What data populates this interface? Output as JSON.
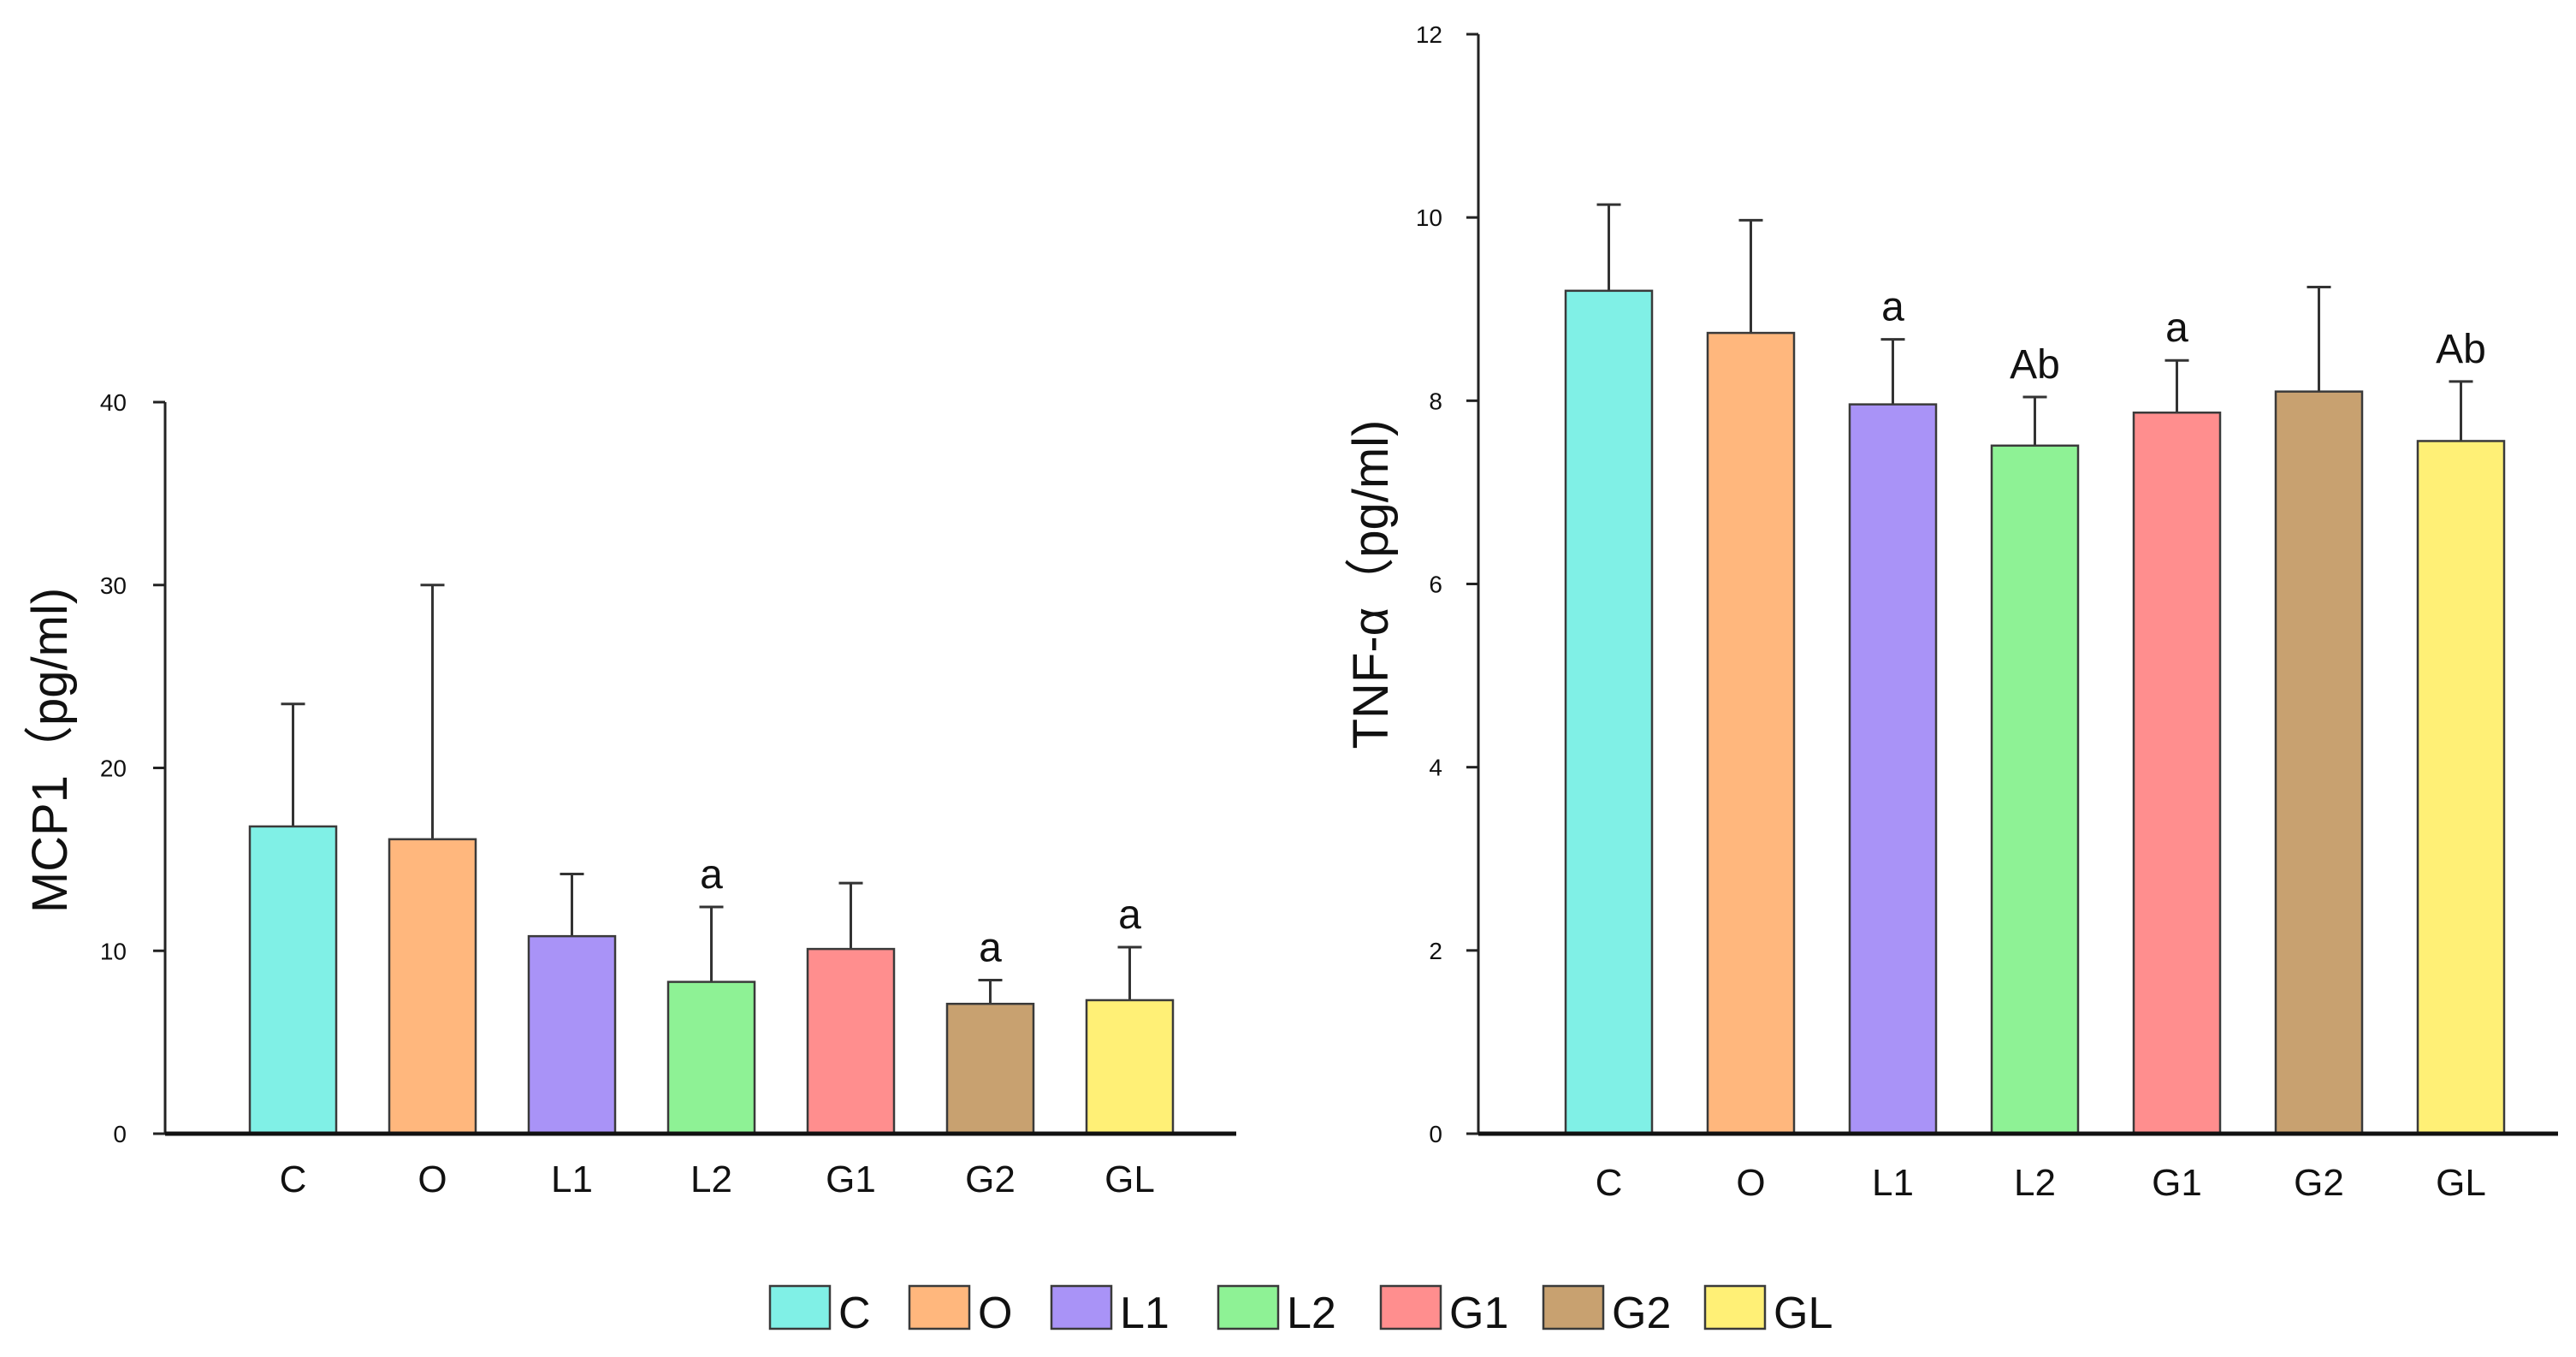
{
  "chart_data": [
    {
      "type": "bar",
      "title": "",
      "xlabel": "",
      "ylabel": "MCP1（pg/ml)",
      "ylim": [
        0,
        40
      ],
      "yticks": [
        0,
        10,
        20,
        30,
        40
      ],
      "categories": [
        "C",
        "O",
        "L1",
        "L2",
        "G1",
        "G2",
        "GL"
      ],
      "values": [
        16.8,
        16.1,
        10.8,
        8.3,
        10.1,
        7.1,
        7.3
      ],
      "errors": [
        6.7,
        13.9,
        3.4,
        4.1,
        3.6,
        1.3,
        2.9
      ],
      "annotations": [
        "",
        "",
        "",
        "a",
        "",
        "a",
        "a"
      ]
    },
    {
      "type": "bar",
      "title": "",
      "xlabel": "",
      "ylabel": "TNF-α（pg/ml)",
      "ylim": [
        0,
        12
      ],
      "yticks": [
        0,
        2,
        4,
        6,
        8,
        10,
        12
      ],
      "categories": [
        "C",
        "O",
        "L1",
        "L2",
        "G1",
        "G2",
        "GL"
      ],
      "values": [
        9.2,
        8.74,
        7.96,
        7.51,
        7.87,
        8.1,
        7.56
      ],
      "errors": [
        0.94,
        1.23,
        0.71,
        0.53,
        0.57,
        1.14,
        0.65
      ],
      "annotations": [
        "",
        "",
        "a",
        "Ab",
        "a",
        "",
        "Ab"
      ]
    }
  ],
  "colors": [
    "#80f0e6",
    "#ffb77d",
    "#a993f7",
    "#8ef295",
    "#ff8e8e",
    "#c8a170",
    "#fff076"
  ],
  "legend": {
    "position": "bottom-center",
    "items": [
      {
        "label": "C"
      },
      {
        "label": "O"
      },
      {
        "label": "L1"
      },
      {
        "label": "L2"
      },
      {
        "label": "G1"
      },
      {
        "label": "G2"
      },
      {
        "label": "GL"
      }
    ]
  }
}
